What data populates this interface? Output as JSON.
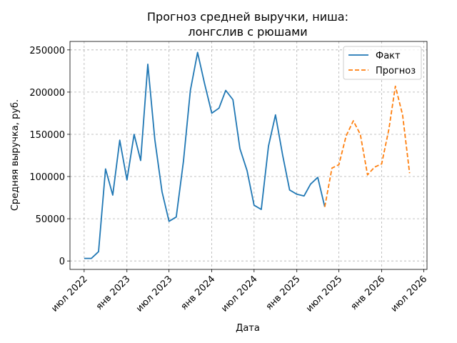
{
  "chart_data": {
    "type": "line",
    "title_lines": [
      "Прогноз средней выручки, ниша:",
      "лонгслив с рюшами"
    ],
    "xlabel": "Дата",
    "ylabel": "Средняя выручка, руб.",
    "xlim": [
      "2022-05-01",
      "2026-07-15"
    ],
    "ylim": [
      -10000,
      260000
    ],
    "grid": true,
    "legend_position": "top-right",
    "x_ticks": [
      {
        "date": "2022-07-01",
        "label": "июл 2022"
      },
      {
        "date": "2023-01-01",
        "label": "янв 2023"
      },
      {
        "date": "2023-07-01",
        "label": "июл 2023"
      },
      {
        "date": "2024-01-01",
        "label": "янв 2024"
      },
      {
        "date": "2024-07-01",
        "label": "июл 2024"
      },
      {
        "date": "2025-01-01",
        "label": "янв 2025"
      },
      {
        "date": "2025-07-01",
        "label": "июл 2025"
      },
      {
        "date": "2026-01-01",
        "label": "янв 2026"
      },
      {
        "date": "2026-07-01",
        "label": "июл 2026"
      }
    ],
    "y_ticks": [
      {
        "value": 0,
        "label": "0"
      },
      {
        "value": 50000,
        "label": "50000"
      },
      {
        "value": 100000,
        "label": "100000"
      },
      {
        "value": 150000,
        "label": "150000"
      },
      {
        "value": 200000,
        "label": "200000"
      },
      {
        "value": 250000,
        "label": "250000"
      }
    ],
    "series": [
      {
        "name": "Факт",
        "color": "#1f77b4",
        "style": "solid",
        "x": [
          "2022-07-01",
          "2022-08-01",
          "2022-09-01",
          "2022-10-01",
          "2022-11-01",
          "2022-12-01",
          "2023-01-01",
          "2023-02-01",
          "2023-03-01",
          "2023-04-01",
          "2023-05-01",
          "2023-06-01",
          "2023-07-01",
          "2023-08-01",
          "2023-09-01",
          "2023-10-01",
          "2023-11-01",
          "2023-12-01",
          "2024-01-01",
          "2024-02-01",
          "2024-03-01",
          "2024-04-01",
          "2024-05-01",
          "2024-06-01",
          "2024-07-01",
          "2024-08-01",
          "2024-09-01",
          "2024-10-01",
          "2024-11-01",
          "2024-12-01",
          "2025-01-01",
          "2025-02-01",
          "2025-03-01",
          "2025-04-01",
          "2025-05-01"
        ],
        "values": [
          3000,
          3000,
          11000,
          109000,
          78000,
          143000,
          96000,
          150000,
          119000,
          233000,
          144000,
          82000,
          47000,
          52000,
          118000,
          202000,
          247000,
          210000,
          175000,
          181000,
          202000,
          191000,
          133000,
          107000,
          66000,
          61000,
          136000,
          173000,
          125000,
          84000,
          79000,
          77000,
          91000,
          99000,
          64000
        ]
      },
      {
        "name": "Прогноз",
        "color": "#ff7f0e",
        "style": "dashed",
        "x": [
          "2025-05-01",
          "2025-06-01",
          "2025-07-01",
          "2025-08-01",
          "2025-09-01",
          "2025-10-01",
          "2025-11-01",
          "2025-12-01",
          "2026-01-01",
          "2026-02-01",
          "2026-03-01",
          "2026-04-01",
          "2026-05-01"
        ],
        "values": [
          64000,
          110000,
          114000,
          148000,
          166000,
          150000,
          102000,
          111000,
          115000,
          156000,
          207000,
          173000,
          104000
        ]
      }
    ]
  }
}
